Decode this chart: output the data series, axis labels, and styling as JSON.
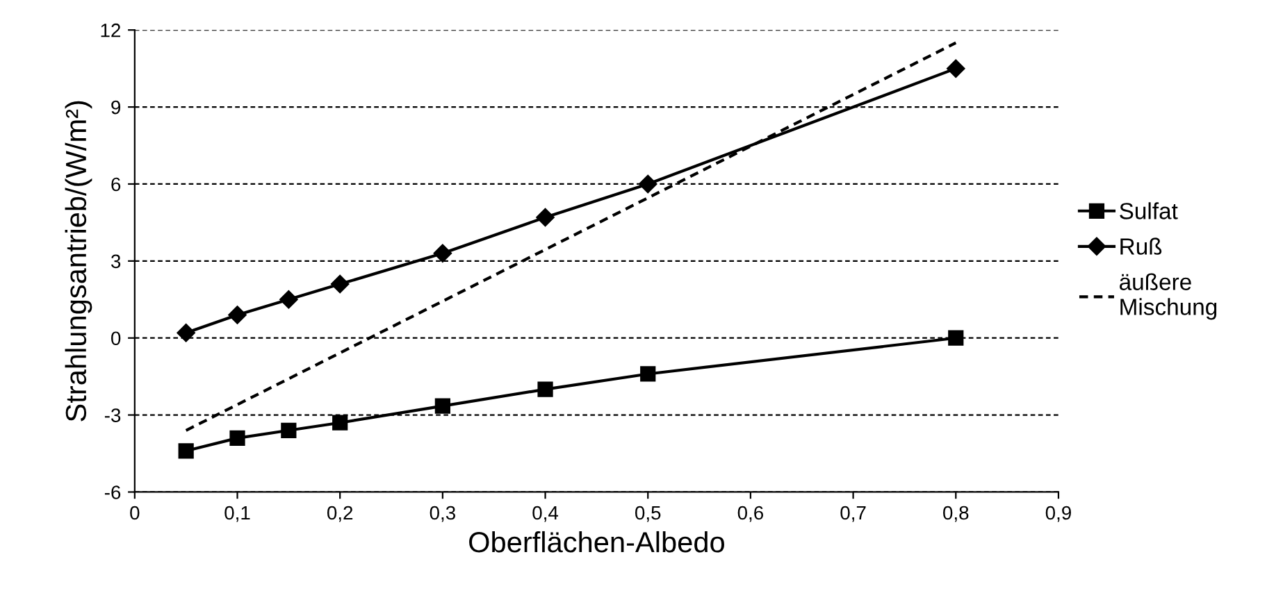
{
  "chart_data": {
    "type": "line",
    "xlabel": "Oberflächen-Albedo",
    "ylabel": "Strahlungsantrieb/(W/m²)",
    "xlim": [
      0,
      0.9
    ],
    "ylim": [
      -6,
      12
    ],
    "xticks": [
      0,
      {
        "value": 0.1,
        "label": "0,1"
      },
      {
        "value": 0.2,
        "label": "0,2"
      },
      {
        "value": 0.3,
        "label": "0,3"
      },
      {
        "value": 0.4,
        "label": "0,4"
      },
      {
        "value": 0.5,
        "label": "0,5"
      },
      {
        "value": 0.6,
        "label": "0,6"
      },
      {
        "value": 0.7,
        "label": "0,7"
      },
      {
        "value": 0.8,
        "label": "0,8"
      },
      {
        "value": 0.9,
        "label": "0,9"
      }
    ],
    "yticks": [
      -6,
      -3,
      0,
      3,
      6,
      9,
      12
    ],
    "grid": "y",
    "legend": "right",
    "series": [
      {
        "name": "Sulfat",
        "color": "#000000",
        "marker": "square",
        "line_style": "solid",
        "x": [
          0.05,
          0.1,
          0.15,
          0.2,
          0.3,
          0.4,
          0.5,
          0.8
        ],
        "values": [
          -4.4,
          -3.9,
          -3.6,
          -3.3,
          -2.65,
          -2.0,
          -1.4,
          0.0
        ]
      },
      {
        "name": "Ruß",
        "color": "#000000",
        "marker": "diamond",
        "line_style": "solid",
        "x": [
          0.05,
          0.1,
          0.15,
          0.2,
          0.3,
          0.4,
          0.5,
          0.8
        ],
        "values": [
          0.2,
          0.9,
          1.5,
          2.1,
          3.3,
          4.7,
          6.0,
          10.5
        ]
      },
      {
        "name": "äußere Mischung",
        "color": "#000000",
        "marker": "none",
        "line_style": "dashed",
        "x": [
          0.05,
          0.8
        ],
        "values": [
          -3.6,
          11.5
        ]
      }
    ]
  }
}
